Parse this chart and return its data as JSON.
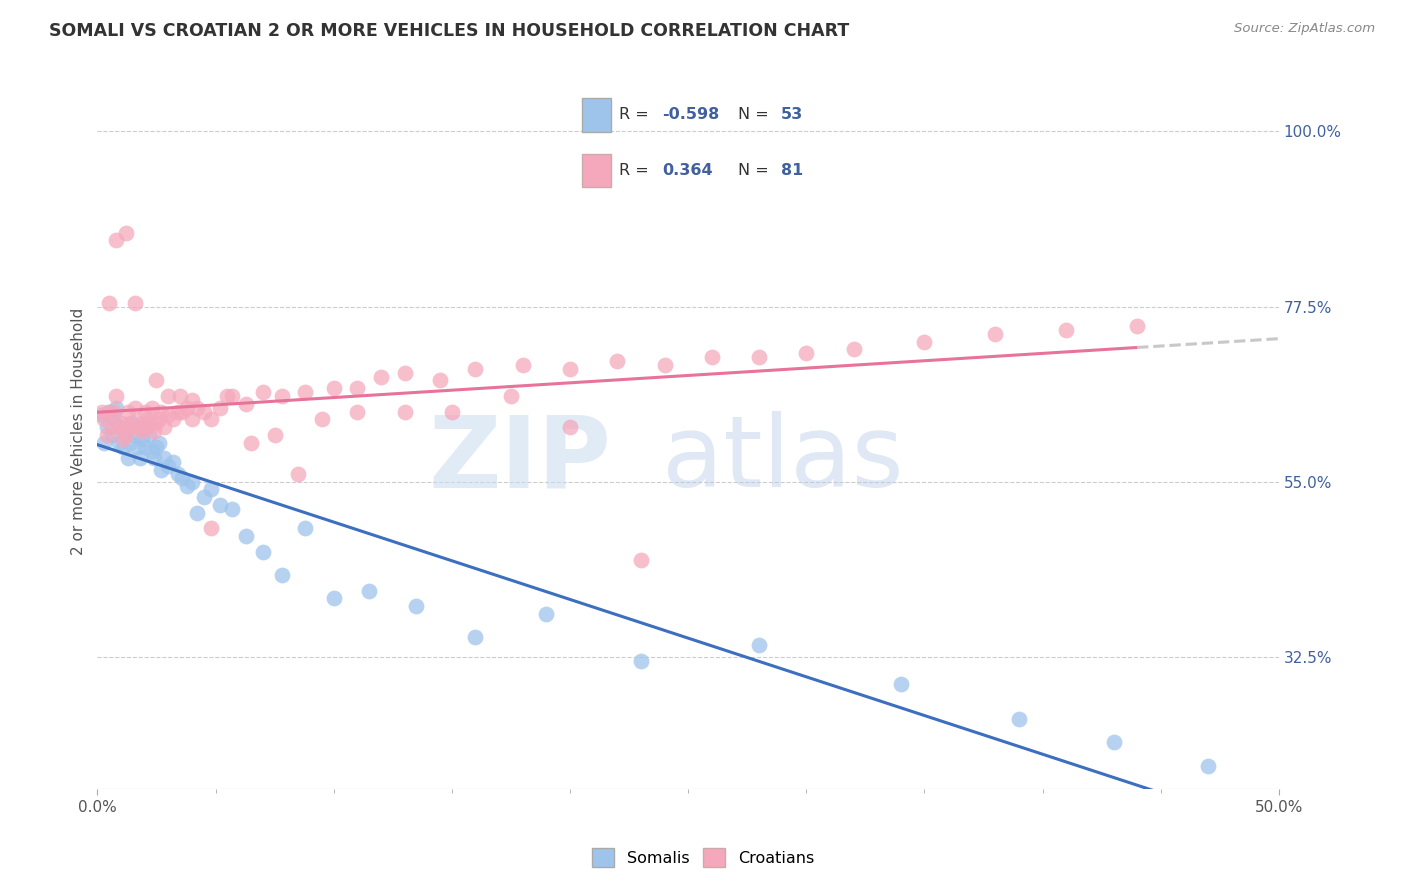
{
  "title": "SOMALI VS CROATIAN 2 OR MORE VEHICLES IN HOUSEHOLD CORRELATION CHART",
  "source": "Source: ZipAtlas.com",
  "ylabel": "2 or more Vehicles in Household",
  "ytick_labels": [
    "100.0%",
    "77.5%",
    "55.0%",
    "32.5%"
  ],
  "ytick_values": [
    1.0,
    0.775,
    0.55,
    0.325
  ],
  "xmin": 0.0,
  "xmax": 0.5,
  "ymin": 0.155,
  "ymax": 1.075,
  "blue_color": "#9EC4EC",
  "pink_color": "#F5A8BC",
  "blue_line_color": "#3D6FBF",
  "pink_line_color": "#E8739A",
  "dash_color": "#C8C8C8",
  "text_color": "#4060A0",
  "grid_color": "#CCCCCC",
  "watermark_zip_color": "#C8DCEF",
  "watermark_atlas_color": "#B8CCE8",
  "legend_border_color": "#CCCCCC",
  "somali_x": [
    0.002,
    0.003,
    0.004,
    0.005,
    0.006,
    0.007,
    0.008,
    0.009,
    0.01,
    0.011,
    0.012,
    0.013,
    0.014,
    0.015,
    0.016,
    0.017,
    0.018,
    0.019,
    0.02,
    0.021,
    0.022,
    0.023,
    0.024,
    0.025,
    0.026,
    0.027,
    0.028,
    0.03,
    0.032,
    0.034,
    0.036,
    0.038,
    0.04,
    0.042,
    0.045,
    0.048,
    0.052,
    0.057,
    0.063,
    0.07,
    0.078,
    0.088,
    0.1,
    0.115,
    0.135,
    0.16,
    0.19,
    0.23,
    0.28,
    0.34,
    0.39,
    0.43,
    0.47
  ],
  "somali_y": [
    0.635,
    0.6,
    0.62,
    0.64,
    0.61,
    0.63,
    0.645,
    0.6,
    0.62,
    0.595,
    0.615,
    0.58,
    0.6,
    0.625,
    0.61,
    0.595,
    0.58,
    0.605,
    0.595,
    0.62,
    0.61,
    0.59,
    0.58,
    0.595,
    0.6,
    0.565,
    0.58,
    0.57,
    0.575,
    0.56,
    0.555,
    0.545,
    0.55,
    0.51,
    0.53,
    0.54,
    0.52,
    0.515,
    0.48,
    0.46,
    0.43,
    0.49,
    0.4,
    0.41,
    0.39,
    0.35,
    0.38,
    0.32,
    0.34,
    0.29,
    0.245,
    0.215,
    0.185
  ],
  "croatian_x": [
    0.002,
    0.003,
    0.004,
    0.005,
    0.006,
    0.007,
    0.008,
    0.009,
    0.01,
    0.011,
    0.012,
    0.013,
    0.014,
    0.015,
    0.016,
    0.017,
    0.018,
    0.019,
    0.02,
    0.021,
    0.022,
    0.023,
    0.024,
    0.025,
    0.026,
    0.027,
    0.028,
    0.03,
    0.032,
    0.034,
    0.036,
    0.038,
    0.04,
    0.042,
    0.045,
    0.048,
    0.052,
    0.057,
    0.063,
    0.07,
    0.078,
    0.088,
    0.1,
    0.11,
    0.12,
    0.13,
    0.145,
    0.16,
    0.18,
    0.2,
    0.22,
    0.24,
    0.26,
    0.28,
    0.3,
    0.32,
    0.35,
    0.38,
    0.41,
    0.44,
    0.005,
    0.008,
    0.012,
    0.016,
    0.02,
    0.025,
    0.03,
    0.035,
    0.04,
    0.048,
    0.055,
    0.065,
    0.075,
    0.085,
    0.095,
    0.11,
    0.13,
    0.15,
    0.175,
    0.2,
    0.23
  ],
  "croatian_y": [
    0.64,
    0.63,
    0.61,
    0.64,
    0.62,
    0.64,
    0.66,
    0.62,
    0.625,
    0.605,
    0.61,
    0.64,
    0.625,
    0.62,
    0.645,
    0.62,
    0.625,
    0.615,
    0.62,
    0.63,
    0.625,
    0.645,
    0.615,
    0.625,
    0.63,
    0.64,
    0.62,
    0.635,
    0.63,
    0.64,
    0.64,
    0.645,
    0.63,
    0.645,
    0.64,
    0.63,
    0.645,
    0.66,
    0.65,
    0.665,
    0.66,
    0.665,
    0.67,
    0.67,
    0.685,
    0.69,
    0.68,
    0.695,
    0.7,
    0.695,
    0.705,
    0.7,
    0.71,
    0.71,
    0.715,
    0.72,
    0.73,
    0.74,
    0.745,
    0.75,
    0.78,
    0.86,
    0.87,
    0.78,
    0.64,
    0.68,
    0.66,
    0.66,
    0.655,
    0.49,
    0.66,
    0.6,
    0.61,
    0.56,
    0.63,
    0.64,
    0.64,
    0.64,
    0.66,
    0.62,
    0.45
  ]
}
